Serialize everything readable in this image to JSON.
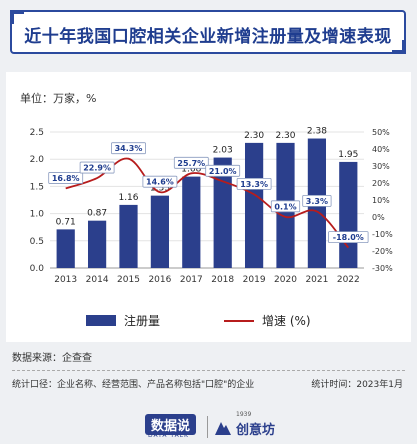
{
  "title": "近十年我国口腔相关企业新增注册量及增速表现",
  "unit_label": "单位：万家，%",
  "legend": {
    "bar": "注册量",
    "line": "增速 (%)"
  },
  "source": "数据来源：企查查",
  "scope": "统计口径：企业名称、经营范围、产品名称包括\"口腔\"的企业",
  "stat_time": "统计时间：2023年1月",
  "footer": {
    "logo1": "数据说",
    "logo1_sub": "DATA TALK",
    "logo2_year": "1939",
    "logo2": "创意坊"
  },
  "colors": {
    "bar": "#2b3f8c",
    "line": "#b71c1c",
    "title": "#1f3d8f"
  },
  "chart_data": {
    "type": "bar",
    "categories": [
      "2013",
      "2014",
      "2015",
      "2016",
      "2017",
      "2018",
      "2019",
      "2020",
      "2021",
      "2022"
    ],
    "series": [
      {
        "name": "注册量",
        "type": "bar",
        "axis": "left",
        "values": [
          0.71,
          0.87,
          1.16,
          1.33,
          1.68,
          2.03,
          2.3,
          2.3,
          2.38,
          1.95
        ],
        "labels": [
          "0.71",
          "0.87",
          "1.16",
          "1.33",
          "1.68",
          "2.03",
          "2.30",
          "2.30",
          "2.38",
          "1.95"
        ]
      },
      {
        "name": "增速 (%)",
        "type": "line",
        "axis": "right",
        "values": [
          16.8,
          22.9,
          34.3,
          14.6,
          25.7,
          21.0,
          13.3,
          0.1,
          3.3,
          -18.0
        ],
        "labels": [
          "16.8%",
          "22.9%",
          "34.3%",
          "14.6%",
          "25.7%",
          "21.0%",
          "13.3%",
          "0.1%",
          "3.3%",
          "-18.0%"
        ]
      }
    ],
    "y_left": {
      "ylim": [
        0,
        2.5
      ],
      "ticks": [
        "0.0",
        "0.5",
        "1.0",
        "1.5",
        "2.0",
        "2.5"
      ]
    },
    "y_right": {
      "ylim": [
        -30,
        50
      ],
      "ticks": [
        "50%",
        "40%",
        "30%",
        "20%",
        "10%",
        "0%",
        "-10%",
        "-20%",
        "-30%"
      ]
    },
    "grid": true,
    "legend_position": "bottom"
  }
}
